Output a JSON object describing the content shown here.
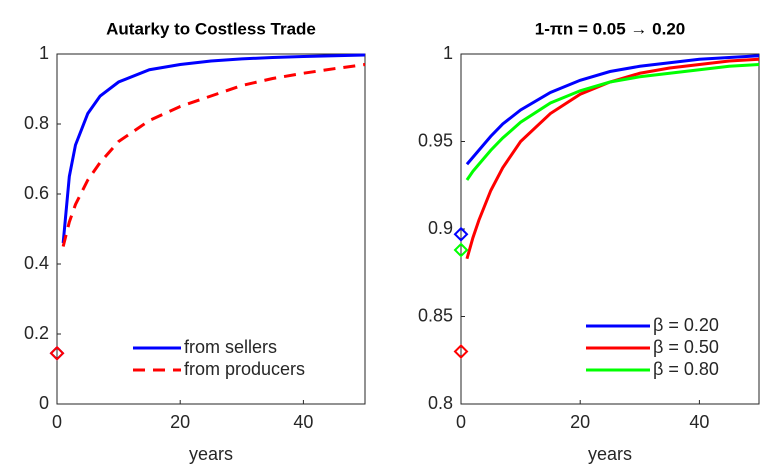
{
  "chart_data": [
    {
      "type": "line",
      "title": "Autarky to Costless Trade",
      "xlabel": "years",
      "x": [
        1,
        2,
        3,
        5,
        7,
        10,
        15,
        20,
        25,
        30,
        35,
        40,
        45,
        50
      ],
      "xlim": [
        0,
        50
      ],
      "xticks": [
        0,
        20,
        40
      ],
      "ylim": [
        0,
        1
      ],
      "yticks": [
        0,
        0.2,
        0.4,
        0.6,
        0.8,
        1
      ],
      "legend": "lower right",
      "series": [
        {
          "name": "from sellers",
          "color": "#0000ff",
          "linestyle": "solid",
          "values": [
            0.46,
            0.65,
            0.74,
            0.83,
            0.88,
            0.92,
            0.955,
            0.97,
            0.98,
            0.986,
            0.99,
            0.993,
            0.995,
            0.997
          ],
          "start": {
            "x": 0,
            "y": 0.145
          }
        },
        {
          "name": "from producers",
          "color": "#ff0000",
          "linestyle": "dashed",
          "values": [
            0.45,
            0.52,
            0.57,
            0.64,
            0.69,
            0.75,
            0.81,
            0.85,
            0.88,
            0.91,
            0.93,
            0.945,
            0.958,
            0.97
          ],
          "start": {
            "x": 0,
            "y": 0.145
          }
        }
      ]
    },
    {
      "type": "line",
      "title": "1-πn = 0.05 → 0.20",
      "xlabel": "years",
      "x": [
        1,
        2,
        3,
        5,
        7,
        10,
        15,
        20,
        25,
        30,
        35,
        40,
        45,
        50
      ],
      "xlim": [
        0,
        50
      ],
      "xticks": [
        0,
        20,
        40
      ],
      "ylim": [
        0.8,
        1
      ],
      "yticks": [
        0.8,
        0.85,
        0.9,
        0.95,
        1
      ],
      "legend": "lower right",
      "series": [
        {
          "name": "β = 0.20",
          "color": "#0000ff",
          "linestyle": "solid",
          "values": [
            0.937,
            0.941,
            0.945,
            0.953,
            0.96,
            0.968,
            0.978,
            0.985,
            0.99,
            0.993,
            0.995,
            0.997,
            0.998,
            0.999
          ],
          "start": {
            "x": 0,
            "y": 0.897
          }
        },
        {
          "name": "β = 0.50",
          "color": "#ff0000",
          "linestyle": "solid",
          "values": [
            0.883,
            0.895,
            0.905,
            0.922,
            0.935,
            0.95,
            0.966,
            0.977,
            0.984,
            0.989,
            0.992,
            0.994,
            0.996,
            0.997
          ],
          "start": {
            "x": 0,
            "y": 0.83
          }
        },
        {
          "name": "β = 0.80",
          "color": "#00ff00",
          "linestyle": "solid",
          "values": [
            0.928,
            0.933,
            0.937,
            0.945,
            0.952,
            0.961,
            0.972,
            0.979,
            0.984,
            0.987,
            0.989,
            0.991,
            0.993,
            0.994
          ],
          "start": {
            "x": 0,
            "y": 0.888
          }
        }
      ]
    }
  ]
}
